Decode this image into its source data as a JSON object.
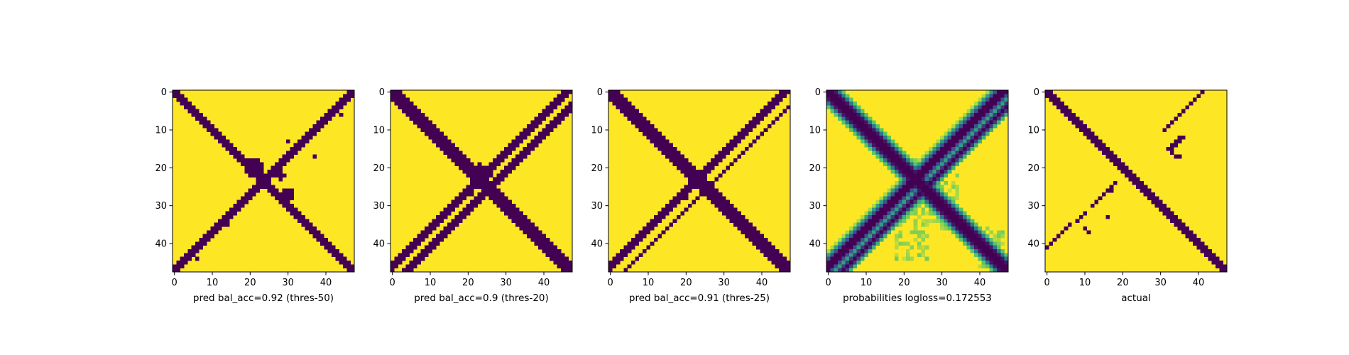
{
  "colors": {
    "background": "#ffffff",
    "low": "#440154",
    "high": "#fde725",
    "viridis_stops": [
      "#440154",
      "#3b528b",
      "#21918c",
      "#5ec962",
      "#fde725"
    ]
  },
  "chart_data": [
    {
      "type": "heatmap",
      "xlabel": "pred bal_acc=0.92 (thres-50)",
      "title": "",
      "size": 48,
      "xticks": [
        0,
        10,
        20,
        30,
        40
      ],
      "yticks": [
        0,
        10,
        20,
        30,
        40
      ],
      "encoding": "binary",
      "bands": [
        {
          "kind": "diag",
          "offset": 0,
          "width": 1.6
        },
        {
          "kind": "anti",
          "offset": 0,
          "width": 1.4
        }
      ],
      "blobs": [
        [
          20,
          21,
          2.6
        ],
        [
          27,
          30,
          1.6
        ],
        [
          22,
          28,
          1.2
        ]
      ],
      "specks": [
        [
          6,
          44
        ],
        [
          17,
          37
        ],
        [
          35,
          14
        ],
        [
          44,
          6
        ],
        [
          13,
          30
        ],
        [
          5,
          43
        ]
      ]
    },
    {
      "type": "heatmap",
      "xlabel": "pred bal_acc=0.9 (thres-20)",
      "title": "",
      "size": 48,
      "xticks": [
        0,
        10,
        20,
        30,
        40
      ],
      "yticks": [
        0,
        10,
        20,
        30,
        40
      ],
      "encoding": "binary",
      "bands": [
        {
          "kind": "diag",
          "offset": 0,
          "width": 2.2
        },
        {
          "kind": "anti",
          "offset": -1,
          "width": 1.8
        },
        {
          "kind": "anti",
          "offset": 4,
          "width": 1.0
        }
      ],
      "blobs": [
        [
          22,
          23,
          3.0
        ]
      ],
      "specks": [
        [
          27,
          21
        ],
        [
          4,
          46
        ]
      ]
    },
    {
      "type": "heatmap",
      "xlabel": "pred bal_acc=0.91 (thres-25)",
      "title": "",
      "size": 48,
      "xticks": [
        0,
        10,
        20,
        30,
        40
      ],
      "yticks": [
        0,
        10,
        20,
        30,
        40
      ],
      "encoding": "binary",
      "bands": [
        {
          "kind": "diag",
          "offset": 0,
          "width": 2.0
        },
        {
          "kind": "anti",
          "offset": -1,
          "width": 1.6
        },
        {
          "kind": "anti",
          "offset": 4,
          "width": 0.9
        }
      ],
      "blobs": [
        [
          21,
          21,
          2.2
        ]
      ],
      "specks": [
        [
          4,
          47
        ],
        [
          28,
          20
        ]
      ]
    },
    {
      "type": "heatmap",
      "xlabel": "probabilities logloss=0.172553",
      "title": "",
      "size": 48,
      "xticks": [
        0,
        10,
        20,
        30,
        40
      ],
      "yticks": [
        0,
        10,
        20,
        30,
        40
      ],
      "encoding": "probability",
      "bands": [
        {
          "kind": "diag",
          "offset": 0,
          "width": 1.8,
          "spread": 3.0
        },
        {
          "kind": "anti",
          "offset": -1,
          "width": 1.2,
          "spread": 3.2
        },
        {
          "kind": "anti",
          "offset": 4,
          "width": 0.6,
          "spread": 2.2
        }
      ],
      "noise_regions": [
        [
          18,
          36,
          22,
          34
        ],
        [
          28,
          44,
          18,
          26
        ],
        [
          36,
          46,
          40,
          46
        ]
      ]
    },
    {
      "type": "heatmap",
      "xlabel": "actual",
      "title": "",
      "size": 48,
      "xticks": [
        0,
        10,
        20,
        30,
        40
      ],
      "yticks": [
        0,
        10,
        20,
        30,
        40
      ],
      "encoding": "binary",
      "bands": [
        {
          "kind": "diag",
          "offset": 0,
          "width": 1.1
        }
      ],
      "segments": [
        [
          0,
          41,
          6,
          35
        ],
        [
          6,
          35,
          10,
          31
        ],
        [
          15,
          32,
          12,
          36
        ],
        [
          16,
          33,
          17,
          34
        ],
        [
          24,
          18,
          30,
          12
        ],
        [
          32,
          10,
          34,
          8
        ],
        [
          35,
          6,
          41,
          0
        ],
        [
          36,
          10,
          37,
          11
        ],
        [
          15,
          16,
          16,
          17
        ]
      ],
      "specks": [
        [
          33,
          16
        ],
        [
          17,
          35
        ],
        [
          26,
          17
        ]
      ]
    }
  ]
}
